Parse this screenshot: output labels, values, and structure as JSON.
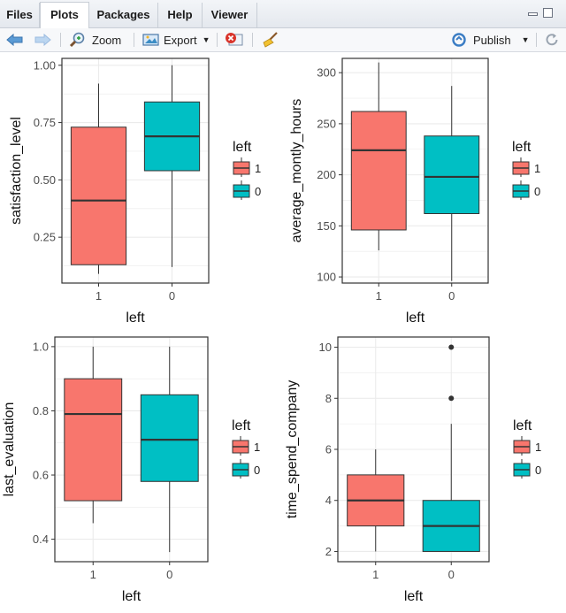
{
  "tabs": [
    {
      "label": "Files",
      "active": false
    },
    {
      "label": "Plots",
      "active": true
    },
    {
      "label": "Packages",
      "active": false
    },
    {
      "label": "Help",
      "active": false
    },
    {
      "label": "Viewer",
      "active": false
    }
  ],
  "toolbar": {
    "zoom_label": "Zoom",
    "export_label": "Export",
    "publish_label": "Publish",
    "icons": [
      "back-arrow-icon",
      "forward-arrow-icon",
      "zoom-icon",
      "export-icon",
      "remove-plot-icon",
      "clear-broom-icon",
      "publish-icon",
      "refresh-icon"
    ]
  },
  "colors": {
    "level_1": "#f8766d",
    "level_0": "#00bfc4",
    "panel_bg": "#ffffff",
    "grid": "#ebebeb",
    "border": "#333333"
  },
  "chart_data": [
    {
      "type": "boxplot",
      "xlabel": "left",
      "ylabel": "satisfaction_level",
      "ylim": [
        0.05,
        1.03
      ],
      "yticks": [
        "0.25",
        "0.50",
        "0.75",
        "1.00"
      ],
      "categories": [
        "1",
        "0"
      ],
      "legend": {
        "title": "left",
        "entries": [
          "1",
          "0"
        ],
        "placement": "right"
      },
      "boxes": [
        {
          "category": "1",
          "min": 0.09,
          "q1": 0.13,
          "median": 0.41,
          "q3": 0.73,
          "max": 0.92,
          "outliers": []
        },
        {
          "category": "0",
          "min": 0.12,
          "q1": 0.54,
          "median": 0.69,
          "q3": 0.84,
          "max": 1.0,
          "outliers": []
        }
      ]
    },
    {
      "type": "boxplot",
      "xlabel": "left",
      "ylabel": "average_montly_hours",
      "ylim": [
        94,
        314
      ],
      "yticks": [
        "100",
        "150",
        "200",
        "250",
        "300"
      ],
      "categories": [
        "1",
        "0"
      ],
      "legend": {
        "title": "left",
        "entries": [
          "1",
          "0"
        ],
        "placement": "right"
      },
      "boxes": [
        {
          "category": "1",
          "min": 126,
          "q1": 146,
          "median": 224,
          "q3": 262,
          "max": 310,
          "outliers": []
        },
        {
          "category": "0",
          "min": 96,
          "q1": 162,
          "median": 198,
          "q3": 238,
          "max": 287,
          "outliers": []
        }
      ]
    },
    {
      "type": "boxplot",
      "xlabel": "left",
      "ylabel": "last_evaluation",
      "ylim": [
        0.33,
        1.03
      ],
      "yticks": [
        "0.4",
        "0.6",
        "0.8",
        "1.0"
      ],
      "categories": [
        "1",
        "0"
      ],
      "legend": {
        "title": "left",
        "entries": [
          "1",
          "0"
        ],
        "placement": "right"
      },
      "boxes": [
        {
          "category": "1",
          "min": 0.45,
          "q1": 0.52,
          "median": 0.79,
          "q3": 0.9,
          "max": 1.0,
          "outliers": []
        },
        {
          "category": "0",
          "min": 0.36,
          "q1": 0.58,
          "median": 0.71,
          "q3": 0.85,
          "max": 1.0,
          "outliers": []
        }
      ]
    },
    {
      "type": "boxplot",
      "xlabel": "left",
      "ylabel": "time_spend_company",
      "ylim": [
        1.6,
        10.4
      ],
      "yticks": [
        "2",
        "4",
        "6",
        "8",
        "10"
      ],
      "categories": [
        "1",
        "0"
      ],
      "legend": {
        "title": "left",
        "entries": [
          "1",
          "0"
        ],
        "placement": "right"
      },
      "boxes": [
        {
          "category": "1",
          "min": 2,
          "q1": 3,
          "median": 4,
          "q3": 5,
          "max": 6,
          "outliers": []
        },
        {
          "category": "0",
          "min": 2,
          "q1": 2,
          "median": 3,
          "q3": 4,
          "max": 7,
          "outliers": [
            8,
            10
          ]
        }
      ]
    }
  ]
}
